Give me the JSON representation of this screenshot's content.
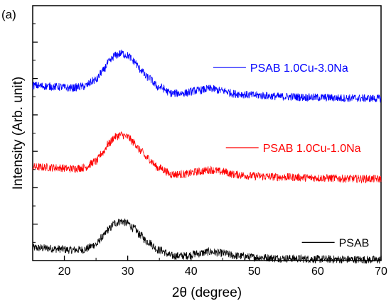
{
  "panel_label": "(a)",
  "chart_data": {
    "type": "line",
    "title": "",
    "xlabel": "2θ (degree)",
    "ylabel": "Intensity (Arb. unit)",
    "xlim": [
      15,
      70
    ],
    "ylim": [
      0,
      7
    ],
    "x_ticks": [
      20,
      30,
      40,
      50,
      60,
      70
    ],
    "x_tick_labels": [
      "20",
      "30",
      "40",
      "50",
      "60",
      "70"
    ],
    "y_ticks": [
      1,
      2,
      3,
      4,
      5,
      6
    ],
    "y_tick_labels": false,
    "grid": false,
    "legend": "inline labels at right of each trace",
    "x": [
      15,
      17,
      19,
      21,
      23,
      25,
      26,
      27,
      28,
      29,
      30,
      31,
      32,
      33,
      35,
      37,
      39,
      41,
      43,
      45,
      47,
      50,
      55,
      60,
      65,
      70
    ],
    "series": [
      {
        "name": "PSAB",
        "color": "#000000",
        "values": [
          0.35,
          0.34,
          0.32,
          0.29,
          0.3,
          0.44,
          0.64,
          0.86,
          1.03,
          1.08,
          1.02,
          0.88,
          0.7,
          0.53,
          0.29,
          0.13,
          0.13,
          0.19,
          0.24,
          0.2,
          0.13,
          0.09,
          0.06,
          0.04,
          0.03,
          0.02
        ]
      },
      {
        "name": "PSAB 1.0Cu-1.0Na",
        "color": "#ff0000",
        "values": [
          2.57,
          2.56,
          2.55,
          2.52,
          2.55,
          2.72,
          2.96,
          3.21,
          3.4,
          3.45,
          3.39,
          3.24,
          3.02,
          2.82,
          2.54,
          2.37,
          2.37,
          2.44,
          2.49,
          2.44,
          2.36,
          2.32,
          2.29,
          2.27,
          2.25,
          2.24
        ]
      },
      {
        "name": "PSAB 1.0Cu-3.0Na",
        "color": "#0000ff",
        "values": [
          4.81,
          4.79,
          4.77,
          4.74,
          4.78,
          4.96,
          5.19,
          5.44,
          5.63,
          5.69,
          5.63,
          5.47,
          5.25,
          5.04,
          4.76,
          4.59,
          4.6,
          4.67,
          4.72,
          4.66,
          4.58,
          4.54,
          4.5,
          4.48,
          4.46,
          4.45
        ]
      }
    ],
    "legend_entries": [
      {
        "label": "PSAB 1.0Cu-3.0Na",
        "color": "#0000ff",
        "anchor_x": 43.5,
        "anchor_y": 5.3
      },
      {
        "label": "PSAB 1.0Cu-1.0Na",
        "color": "#ff0000",
        "anchor_x": 45.5,
        "anchor_y": 3.1
      },
      {
        "label": "PSAB",
        "color": "#000000",
        "anchor_x": 57.5,
        "anchor_y": 0.5
      }
    ]
  }
}
